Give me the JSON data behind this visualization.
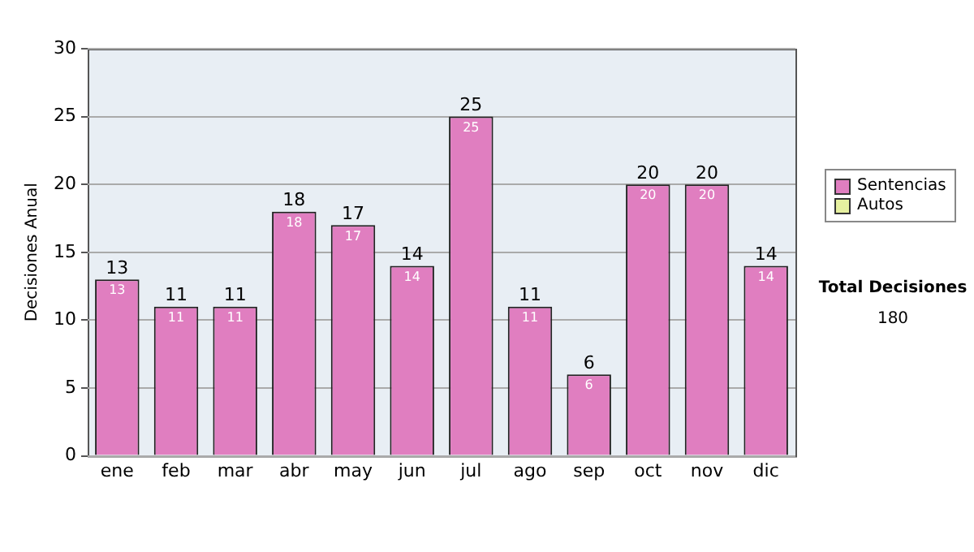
{
  "chart_data": {
    "type": "bar",
    "ylabel": "Decisiones Anual",
    "categories": [
      "ene",
      "feb",
      "mar",
      "abr",
      "may",
      "jun",
      "jul",
      "ago",
      "sep",
      "oct",
      "nov",
      "dic"
    ],
    "series": [
      {
        "name": "Sentencias",
        "color": "#e07ec0",
        "values": [
          13,
          11,
          11,
          18,
          17,
          14,
          25,
          11,
          6,
          20,
          20,
          14
        ],
        "value_labels": [
          "13",
          "11",
          "11",
          "18",
          "17",
          "14",
          "25",
          "11",
          "6",
          "20",
          "20",
          "14"
        ]
      },
      {
        "name": "Autos",
        "color": "#e6f0a0",
        "values": [
          0,
          0,
          0,
          0,
          0,
          0,
          0,
          0,
          0,
          0,
          0,
          0
        ]
      }
    ],
    "stacked": true,
    "totals": [
      "13",
      "11",
      "11",
      "18",
      "17",
      "14",
      "25",
      "11",
      "6",
      "20",
      "20",
      "14"
    ],
    "ylim": [
      0,
      30
    ],
    "yticks": [
      0,
      5,
      10,
      15,
      20,
      25,
      30
    ],
    "grid": "y",
    "legend": "right",
    "annotations": [
      "Total Decisiones",
      "180"
    ]
  }
}
